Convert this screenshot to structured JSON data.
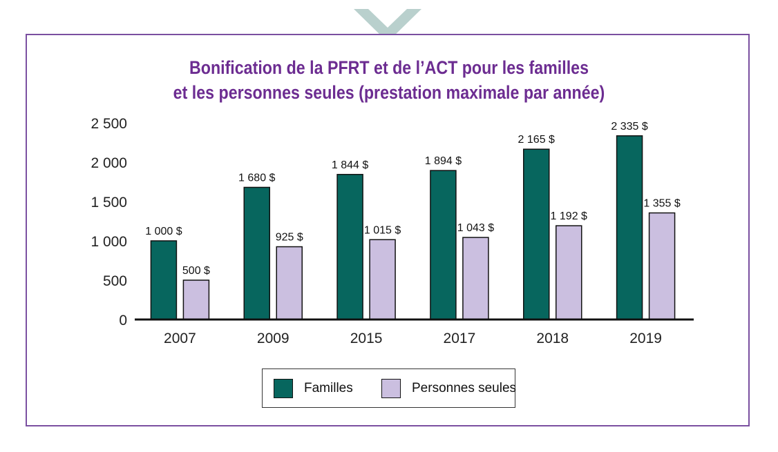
{
  "colors": {
    "frame": "#7a4fa0",
    "title": "#6c2c91",
    "familles": "#07665e",
    "personnes_seules": "#cbbfe0",
    "chevron": "#b9d0cd",
    "gridline": "#d9d9d9",
    "axis": "#111111"
  },
  "chart_data": {
    "type": "bar",
    "title_lines": [
      "Bonification de la PFRT et de l’ACT pour les familles",
      "et les personnes seules (prestation maximale par année)"
    ],
    "categories": [
      "2007",
      "2009",
      "2015",
      "2017",
      "2018",
      "2019"
    ],
    "series": [
      {
        "name": "Familles",
        "values": [
          1000,
          1680,
          1844,
          1894,
          2165,
          2335
        ],
        "labels": [
          "1 000 $",
          "1 680 $",
          "1 844 $",
          "1 894 $",
          "2 165 $",
          "2 335 $"
        ]
      },
      {
        "name": "Personnes seules",
        "values": [
          500,
          925,
          1015,
          1043,
          1192,
          1355
        ],
        "labels": [
          "500 $",
          "925 $",
          "1 015 $",
          "1 043 $",
          "1 192 $",
          "1 355 $"
        ]
      }
    ],
    "yticks": [
      0,
      500,
      1000,
      1500,
      2000,
      2500
    ],
    "ytick_labels": [
      "0",
      "500",
      "1 000",
      "1 500",
      "2 000",
      "2 500"
    ],
    "ylim": [
      0,
      2500
    ],
    "xlabel": "",
    "ylabel": "",
    "grid": true,
    "legend_position": "bottom-center"
  },
  "legend": {
    "items": [
      {
        "label": "Familles",
        "color": "#07665e"
      },
      {
        "label": "Personnes seules",
        "color": "#cbbfe0"
      }
    ]
  }
}
